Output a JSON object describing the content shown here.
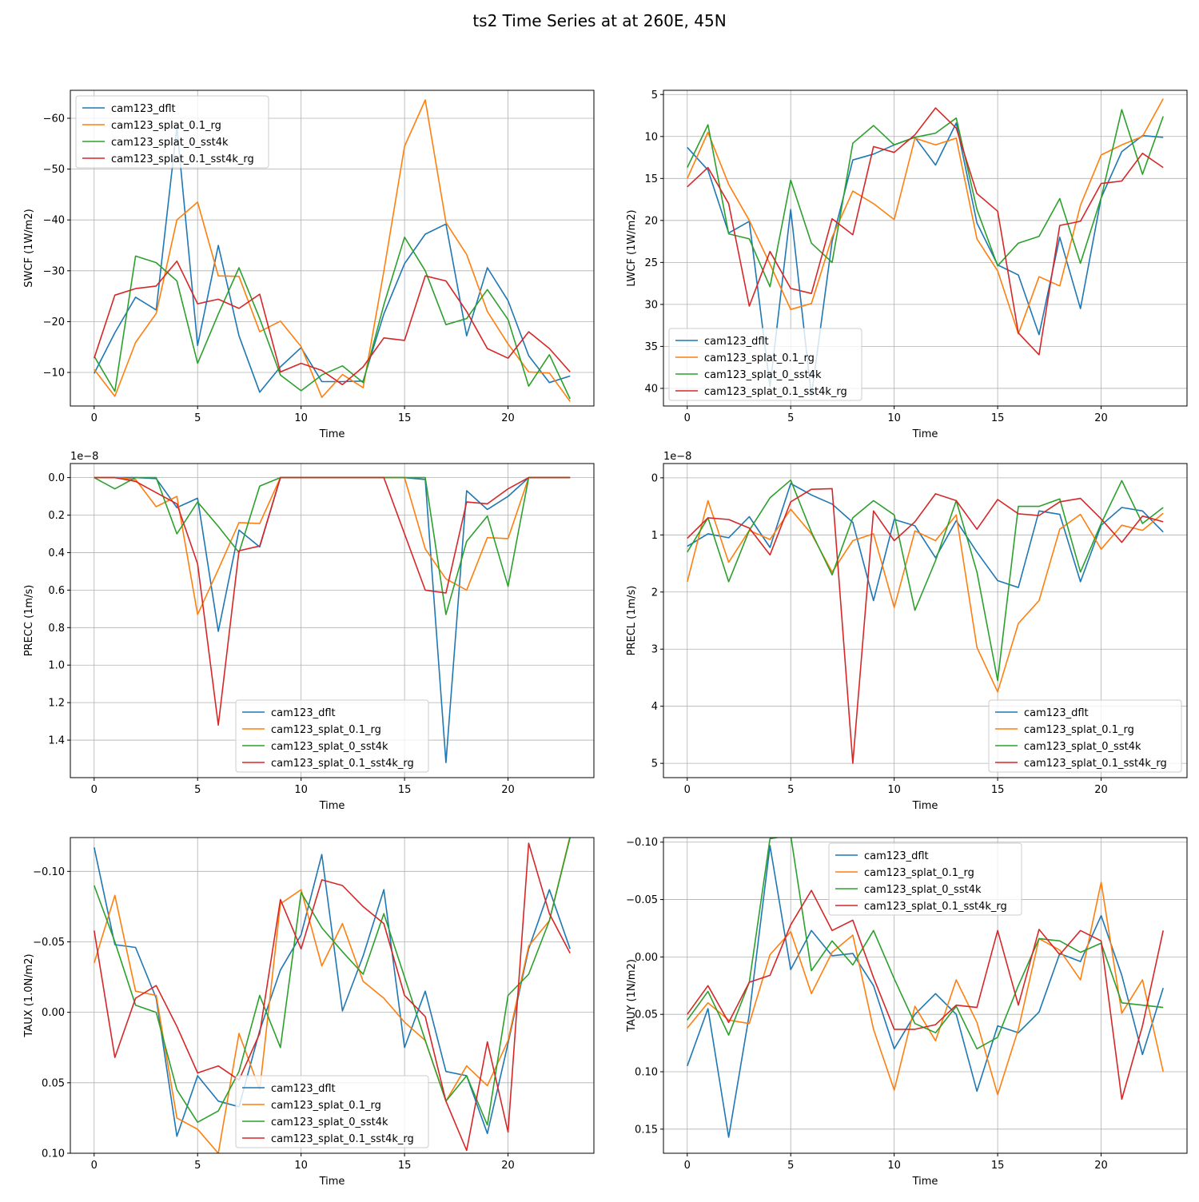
{
  "figure": {
    "title": "ts2 Time Series at at 260E, 45N",
    "colors": {
      "cam123_dflt": "#1f77b4",
      "cam123_splat_0.1_rg": "#ff7f0e",
      "cam123_splat_0_sst4k": "#2ca02c",
      "cam123_splat_0.1_sst4k_rg": "#d62728"
    }
  },
  "chart_data": [
    {
      "type": "line",
      "title": "",
      "xlabel": "Time",
      "ylabel": "SWCF (1W/m2)",
      "xlim": [
        -1.15,
        24.15
      ],
      "ylim": [
        -3.4,
        -65.5
      ],
      "xticks": [
        0,
        5,
        10,
        15,
        20
      ],
      "xtick_labels": [
        "0",
        "5",
        "10",
        "15",
        "20"
      ],
      "yticks": [
        -10,
        -20,
        -30,
        -40,
        -50,
        -60
      ],
      "ytick_labels": [
        "−10",
        "−20",
        "−30",
        "−40",
        "−50",
        "−60"
      ],
      "offset_label": "",
      "legend": "upper-left",
      "x": [
        0,
        1,
        2,
        3,
        4,
        5,
        6,
        7,
        8,
        9,
        10,
        11,
        12,
        13,
        14,
        15,
        16,
        17,
        18,
        19,
        20,
        21,
        22,
        23
      ],
      "series": [
        {
          "name": "cam123_dflt",
          "color": "#1f77b4",
          "values": [
            -9.8,
            -17.8,
            -24.8,
            -22.3,
            -58.3,
            -15.3,
            -35.0,
            -17.2,
            -6.1,
            -11.1,
            -14.9,
            -8.2,
            -8.2,
            -8.3,
            -21.5,
            -31.4,
            -37.2,
            -39.2,
            -17.2,
            -30.6,
            -24.1,
            -13.3,
            -8.0,
            -9.3
          ]
        },
        {
          "name": "cam123_splat_0.1_rg",
          "color": "#ff7f0e",
          "values": [
            -10.6,
            -5.3,
            -15.9,
            -21.6,
            -40.0,
            -43.5,
            -29.0,
            -28.9,
            -18.0,
            -20.1,
            -15.1,
            -5.1,
            -9.6,
            -7.0,
            -29.9,
            -54.5,
            -63.6,
            -39.5,
            -33.2,
            -22.0,
            -15.6,
            -10.1,
            -9.9,
            -4.3
          ]
        },
        {
          "name": "cam123_splat_0_sst4k",
          "color": "#2ca02c",
          "values": [
            -13.2,
            -6.3,
            -32.9,
            -31.6,
            -28.0,
            -11.8,
            -21.5,
            -30.6,
            -20.6,
            -9.5,
            -6.4,
            -9.5,
            -11.3,
            -8.0,
            -23.3,
            -36.6,
            -30.0,
            -19.4,
            -20.6,
            -26.3,
            -20.4,
            -7.3,
            -13.5,
            -4.8
          ]
        },
        {
          "name": "cam123_splat_0.1_sst4k_rg",
          "color": "#d62728",
          "values": [
            -12.8,
            -25.2,
            -26.5,
            -27.0,
            -31.9,
            -23.5,
            -24.4,
            -22.6,
            -25.4,
            -10.1,
            -11.8,
            -10.4,
            -7.6,
            -11.1,
            -16.8,
            -16.3,
            -29.0,
            -28.0,
            -22.0,
            -14.7,
            -12.8,
            -18.0,
            -14.7,
            -10.1
          ]
        }
      ]
    },
    {
      "type": "line",
      "title": "",
      "xlabel": "Time",
      "ylabel": "LWCF (1W/m2)",
      "xlim": [
        -1.15,
        24.15
      ],
      "ylim": [
        42.1,
        4.5
      ],
      "xticks": [
        0,
        5,
        10,
        15,
        20
      ],
      "xtick_labels": [
        "0",
        "5",
        "10",
        "15",
        "20"
      ],
      "yticks": [
        5,
        10,
        15,
        20,
        25,
        30,
        35,
        40
      ],
      "ytick_labels": [
        "5",
        "10",
        "15",
        "20",
        "25",
        "30",
        "35",
        "40"
      ],
      "offset_label": "",
      "legend": "lower-left",
      "x": [
        0,
        1,
        2,
        3,
        4,
        5,
        6,
        7,
        8,
        9,
        10,
        11,
        12,
        13,
        14,
        15,
        16,
        17,
        18,
        19,
        20,
        21,
        22,
        23
      ],
      "series": [
        {
          "name": "cam123_dflt",
          "color": "#1f77b4",
          "values": [
            11.3,
            14.0,
            21.5,
            20.1,
            39.8,
            18.7,
            40.9,
            22.5,
            12.8,
            12.1,
            11.0,
            10.1,
            13.4,
            8.4,
            20.3,
            25.3,
            26.5,
            33.6,
            22.0,
            30.5,
            17.3,
            11.8,
            9.9,
            10.1
          ]
        },
        {
          "name": "cam123_splat_0.1_rg",
          "color": "#ff7f0e",
          "values": [
            15.0,
            9.5,
            15.7,
            20.0,
            25.2,
            30.6,
            29.9,
            22.0,
            16.5,
            18.0,
            19.9,
            10.2,
            11.0,
            10.2,
            22.2,
            26.0,
            33.5,
            26.7,
            27.8,
            18.2,
            12.2,
            11.0,
            10.0,
            5.5
          ]
        },
        {
          "name": "cam123_splat_0_sst4k",
          "color": "#2ca02c",
          "values": [
            13.7,
            8.6,
            21.6,
            22.2,
            27.9,
            15.2,
            22.7,
            25.0,
            10.8,
            8.7,
            11.0,
            10.1,
            9.6,
            7.8,
            18.7,
            25.4,
            22.7,
            21.9,
            17.4,
            25.1,
            17.3,
            6.8,
            14.5,
            7.6
          ]
        },
        {
          "name": "cam123_splat_0.1_sst4k_rg",
          "color": "#d62728",
          "values": [
            16.0,
            13.7,
            18.0,
            30.2,
            23.7,
            28.1,
            28.7,
            19.8,
            21.7,
            11.2,
            11.9,
            9.8,
            6.6,
            9.0,
            16.8,
            18.9,
            33.4,
            36.0,
            20.6,
            20.1,
            15.6,
            15.3,
            12.0,
            13.7
          ]
        }
      ]
    },
    {
      "type": "line",
      "title": "",
      "xlabel": "Time",
      "ylabel": "PRECC (1m/s)",
      "xlim": [
        -1.15,
        24.15
      ],
      "ylim": [
        1.6,
        -0.075
      ],
      "xticks": [
        0,
        5,
        10,
        15,
        20
      ],
      "xtick_labels": [
        "0",
        "5",
        "10",
        "15",
        "20"
      ],
      "yticks": [
        0.0,
        0.2,
        0.4,
        0.6,
        0.8,
        1.0,
        1.2,
        1.4
      ],
      "ytick_labels": [
        "0.0",
        "0.2",
        "0.4",
        "0.6",
        "0.8",
        "1.0",
        "1.2",
        "1.4"
      ],
      "offset_label": "1e−8",
      "legend": "lower-center",
      "x": [
        0,
        1,
        2,
        3,
        4,
        5,
        6,
        7,
        8,
        9,
        10,
        11,
        12,
        13,
        14,
        15,
        16,
        17,
        18,
        19,
        20,
        21,
        22,
        23
      ],
      "series": [
        {
          "name": "cam123_dflt",
          "color": "#1f77b4",
          "values": [
            0.0,
            0.0,
            0.0,
            0.005,
            0.16,
            0.11,
            0.82,
            0.28,
            0.37,
            0.0,
            0.0,
            0.0,
            0.0,
            0.0,
            0.0,
            0.0,
            0.01,
            1.52,
            0.07,
            0.17,
            0.1,
            0.0,
            0.0,
            0.0
          ]
        },
        {
          "name": "cam123_splat_0.1_rg",
          "color": "#ff7f0e",
          "values": [
            0.0,
            0.0,
            0.01,
            0.155,
            0.1,
            0.73,
            0.49,
            0.24,
            0.245,
            0.0,
            0.0,
            0.0,
            0.0,
            0.0,
            0.0,
            0.0,
            0.38,
            0.54,
            0.6,
            0.32,
            0.325,
            0.0,
            0.0,
            0.0
          ]
        },
        {
          "name": "cam123_splat_0_sst4k",
          "color": "#2ca02c",
          "values": [
            0.0,
            0.06,
            0.0,
            0.0,
            0.3,
            0.13,
            0.26,
            0.4,
            0.045,
            0.0,
            0.0,
            0.0,
            0.0,
            0.0,
            0.0,
            0.0,
            0.0,
            0.73,
            0.34,
            0.205,
            0.58,
            0.0,
            0.0,
            0.0
          ]
        },
        {
          "name": "cam123_splat_0.1_sst4k_rg",
          "color": "#d62728",
          "values": [
            0.0,
            0.0,
            0.02,
            0.08,
            0.14,
            0.46,
            1.32,
            0.39,
            0.365,
            0.0,
            0.0,
            0.0,
            0.0,
            0.0,
            0.0,
            0.3,
            0.6,
            0.615,
            0.13,
            0.14,
            0.06,
            0.0,
            0.0,
            0.0
          ]
        }
      ]
    },
    {
      "type": "line",
      "title": "",
      "xlabel": "Time",
      "ylabel": "PRECL (1m/s)",
      "xlim": [
        -1.15,
        24.15
      ],
      "ylim": [
        5.25,
        -0.25
      ],
      "xticks": [
        0,
        5,
        10,
        15,
        20
      ],
      "xtick_labels": [
        "0",
        "5",
        "10",
        "15",
        "20"
      ],
      "yticks": [
        0,
        1,
        2,
        3,
        4,
        5
      ],
      "ytick_labels": [
        "0",
        "1",
        "2",
        "3",
        "4",
        "5"
      ],
      "offset_label": "1e−8",
      "legend": "lower-right",
      "x": [
        0,
        1,
        2,
        3,
        4,
        5,
        6,
        7,
        8,
        9,
        10,
        11,
        12,
        13,
        14,
        15,
        16,
        17,
        18,
        19,
        20,
        21,
        22,
        23
      ],
      "series": [
        {
          "name": "cam123_dflt",
          "color": "#1f77b4",
          "values": [
            1.2,
            0.98,
            1.05,
            0.68,
            1.22,
            0.1,
            0.3,
            0.46,
            0.78,
            2.15,
            0.73,
            0.84,
            1.4,
            0.75,
            1.3,
            1.8,
            1.92,
            0.58,
            0.64,
            1.82,
            0.83,
            0.52,
            0.58,
            0.95
          ]
        },
        {
          "name": "cam123_splat_0.1_rg",
          "color": "#ff7f0e",
          "values": [
            1.82,
            0.4,
            1.48,
            0.92,
            1.08,
            0.55,
            0.98,
            1.65,
            1.1,
            0.98,
            2.27,
            0.93,
            1.1,
            0.65,
            2.97,
            3.75,
            2.55,
            2.15,
            0.9,
            0.64,
            1.25,
            0.83,
            0.92,
            0.62
          ]
        },
        {
          "name": "cam123_splat_0_sst4k",
          "color": "#2ca02c",
          "values": [
            1.3,
            0.7,
            1.82,
            0.92,
            0.35,
            0.04,
            0.95,
            1.7,
            0.7,
            0.4,
            0.65,
            2.32,
            1.45,
            0.4,
            1.65,
            3.55,
            0.5,
            0.5,
            0.37,
            1.65,
            0.8,
            0.05,
            0.8,
            0.52
          ]
        },
        {
          "name": "cam123_splat_0.1_sst4k_rg",
          "color": "#d62728",
          "values": [
            1.06,
            0.7,
            0.73,
            0.88,
            1.35,
            0.42,
            0.2,
            0.19,
            5.0,
            0.58,
            1.1,
            0.77,
            0.28,
            0.4,
            0.9,
            0.38,
            0.63,
            0.66,
            0.42,
            0.36,
            0.72,
            1.13,
            0.67,
            0.77
          ]
        }
      ]
    },
    {
      "type": "line",
      "title": "",
      "xlabel": "Time",
      "ylabel": "TAUX (1.0N/m2)",
      "xlim": [
        -1.15,
        24.15
      ],
      "ylim": [
        0.1,
        -0.124
      ],
      "xticks": [
        0,
        5,
        10,
        15,
        20
      ],
      "xtick_labels": [
        "0",
        "5",
        "10",
        "15",
        "20"
      ],
      "yticks": [
        0.1,
        0.05,
        0.0,
        -0.05,
        -0.1
      ],
      "ytick_labels": [
        "0.10",
        "0.05",
        "0.00",
        "−0.05",
        "−0.10"
      ],
      "offset_label": "",
      "legend": "lower-center",
      "x": [
        0,
        1,
        2,
        3,
        4,
        5,
        6,
        7,
        8,
        9,
        10,
        11,
        12,
        13,
        14,
        15,
        16,
        17,
        18,
        19,
        20,
        21,
        22,
        23
      ],
      "series": [
        {
          "name": "cam123_dflt",
          "color": "#1f77b4",
          "values": [
            -0.117,
            -0.048,
            -0.046,
            -0.01,
            0.088,
            0.045,
            0.063,
            0.067,
            0.013,
            -0.03,
            -0.055,
            -0.112,
            -0.001,
            -0.04,
            -0.087,
            0.025,
            -0.015,
            0.042,
            0.045,
            0.086,
            0.022,
            -0.045,
            -0.087,
            -0.045
          ]
        },
        {
          "name": "cam123_splat_0.1_rg",
          "color": "#ff7f0e",
          "values": [
            -0.035,
            -0.083,
            -0.015,
            -0.012,
            0.075,
            0.083,
            0.1,
            0.015,
            0.055,
            -0.077,
            -0.087,
            -0.033,
            -0.063,
            -0.022,
            -0.01,
            0.007,
            0.02,
            0.063,
            0.038,
            0.052,
            0.02,
            -0.047,
            -0.065,
            -0.125
          ]
        },
        {
          "name": "cam123_splat_0_sst4k",
          "color": "#2ca02c",
          "values": [
            -0.09,
            -0.05,
            -0.005,
            0.0,
            0.055,
            0.078,
            0.07,
            0.042,
            -0.012,
            0.025,
            -0.085,
            -0.06,
            -0.043,
            -0.027,
            -0.07,
            -0.025,
            0.02,
            0.063,
            0.045,
            0.08,
            -0.012,
            -0.027,
            -0.065,
            -0.124
          ]
        },
        {
          "name": "cam123_splat_0.1_sst4k_rg",
          "color": "#d62728",
          "values": [
            -0.058,
            0.032,
            -0.01,
            -0.019,
            0.01,
            0.043,
            0.038,
            0.048,
            0.015,
            -0.08,
            -0.045,
            -0.094,
            -0.09,
            -0.075,
            -0.063,
            -0.012,
            0.003,
            0.063,
            0.098,
            0.021,
            0.085,
            -0.12,
            -0.07,
            -0.042
          ]
        }
      ]
    },
    {
      "type": "line",
      "title": "",
      "xlabel": "Time",
      "ylabel": "TAUY (1N/m2)",
      "xlim": [
        -1.15,
        24.15
      ],
      "ylim": [
        0.171,
        -0.104
      ],
      "xticks": [
        0,
        5,
        10,
        15,
        20
      ],
      "xtick_labels": [
        "0",
        "5",
        "10",
        "15",
        "20"
      ],
      "yticks": [
        0.15,
        0.1,
        0.05,
        0.0,
        -0.05,
        -0.1
      ],
      "ytick_labels": [
        "0.15",
        "0.10",
        "0.05",
        "0.00",
        "−0.05",
        "−0.10"
      ],
      "offset_label": "",
      "legend": "upper-center",
      "x": [
        0,
        1,
        2,
        3,
        4,
        5,
        6,
        7,
        8,
        9,
        10,
        11,
        12,
        13,
        14,
        15,
        16,
        17,
        18,
        19,
        20,
        21,
        22,
        23
      ],
      "series": [
        {
          "name": "cam123_dflt",
          "color": "#1f77b4",
          "values": [
            0.095,
            0.045,
            0.157,
            0.05,
            -0.097,
            0.011,
            -0.023,
            -0.001,
            -0.003,
            0.025,
            0.08,
            0.05,
            0.032,
            0.05,
            0.117,
            0.06,
            0.066,
            0.048,
            -0.003,
            0.004,
            -0.036,
            0.016,
            0.085,
            0.027
          ]
        },
        {
          "name": "cam123_splat_0.1_rg",
          "color": "#ff7f0e",
          "values": [
            0.062,
            0.04,
            0.055,
            0.058,
            -0.002,
            -0.022,
            0.032,
            -0.004,
            -0.019,
            0.063,
            0.116,
            0.043,
            0.073,
            0.02,
            0.057,
            0.12,
            0.063,
            -0.016,
            -0.006,
            0.02,
            -0.065,
            0.049,
            0.02,
            0.1
          ]
        },
        {
          "name": "cam123_splat_0_sst4k",
          "color": "#2ca02c",
          "values": [
            0.055,
            0.03,
            0.068,
            0.022,
            -0.103,
            -0.106,
            0.012,
            -0.014,
            0.007,
            -0.023,
            0.019,
            0.058,
            0.066,
            0.043,
            0.08,
            0.07,
            0.025,
            -0.016,
            -0.014,
            -0.004,
            -0.012,
            0.04,
            0.042,
            0.044
          ]
        },
        {
          "name": "cam123_splat_0.1_sst4k_rg",
          "color": "#d62728",
          "values": [
            0.05,
            0.025,
            0.057,
            0.022,
            0.016,
            -0.028,
            -0.058,
            -0.023,
            -0.032,
            0.018,
            0.063,
            0.063,
            0.059,
            0.042,
            0.044,
            -0.023,
            0.042,
            -0.024,
            -0.002,
            -0.023,
            -0.014,
            0.124,
            0.06,
            -0.023
          ]
        }
      ]
    }
  ]
}
